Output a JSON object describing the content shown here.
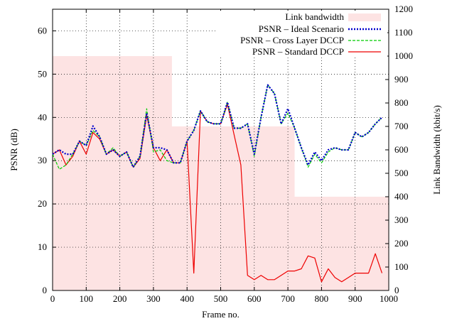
{
  "chart_data": {
    "type": "line",
    "xlabel": "Frame no.",
    "ylabel": "PSNR (dB)",
    "y2label": "Link Bandwidth (kbit/s)",
    "xlim": [
      0,
      1000
    ],
    "ylim": [
      0,
      65
    ],
    "y2lim": [
      0,
      1200
    ],
    "x_ticks": [
      0,
      100,
      200,
      300,
      400,
      500,
      600,
      700,
      800,
      900,
      1000
    ],
    "y_ticks": [
      0,
      10,
      20,
      30,
      40,
      50,
      60
    ],
    "y2_ticks": [
      0,
      100,
      200,
      300,
      400,
      500,
      600,
      700,
      800,
      900,
      1000,
      1100,
      1200
    ],
    "grid": true,
    "legend_position": "top-right",
    "bandwidth": {
      "name": "Link bandwidth",
      "color": "#fde3e3",
      "steps": [
        {
          "x0": 0,
          "x1": 355,
          "value": 1000
        },
        {
          "x0": 355,
          "x1": 720,
          "value": 700
        },
        {
          "x0": 720,
          "x1": 1000,
          "value": 400
        }
      ]
    },
    "series": [
      {
        "name": "PSNR – Ideal Scenario",
        "color": "#0000cc",
        "style": "dotted",
        "x": [
          0,
          20,
          40,
          60,
          80,
          100,
          120,
          140,
          160,
          180,
          200,
          220,
          240,
          260,
          280,
          300,
          320,
          340,
          360,
          380,
          400,
          420,
          440,
          460,
          480,
          500,
          520,
          540,
          560,
          580,
          600,
          620,
          640,
          660,
          680,
          700,
          720,
          740,
          760,
          780,
          800,
          820,
          840,
          860,
          880,
          900,
          920,
          940,
          960,
          980
        ],
        "values": [
          31.5,
          32.5,
          31.5,
          31.5,
          34.5,
          33.5,
          38,
          35.5,
          31.5,
          32.5,
          31,
          32,
          28.5,
          31,
          41,
          33,
          33,
          32.5,
          29.5,
          29.5,
          34.5,
          37,
          41.5,
          39,
          38.5,
          38.5,
          43.5,
          37.5,
          37.5,
          38.5,
          31.5,
          40,
          47.5,
          45.5,
          38.5,
          42,
          37.5,
          33,
          29,
          32,
          30,
          32.5,
          33,
          32.5,
          32.5,
          36.5,
          35.5,
          36.5,
          38.5,
          40
        ]
      },
      {
        "name": "PSNR – Cross Layer DCCP",
        "color": "#00cc00",
        "style": "dashed",
        "x": [
          0,
          20,
          40,
          60,
          80,
          100,
          120,
          140,
          160,
          180,
          200,
          220,
          240,
          260,
          280,
          300,
          320,
          340,
          360,
          380,
          400,
          420,
          440,
          460,
          480,
          500,
          520,
          540,
          560,
          580,
          600,
          620,
          640,
          660,
          680,
          700,
          720,
          740,
          760,
          780,
          800,
          820,
          840,
          860,
          880,
          900,
          920,
          940,
          960,
          980
        ],
        "values": [
          31.5,
          28,
          29,
          31.5,
          34.5,
          33.5,
          37,
          35.5,
          31.5,
          33,
          31,
          32,
          28.5,
          31,
          42,
          32,
          32.5,
          30,
          29.5,
          29.5,
          34.5,
          37,
          41.5,
          39,
          38.5,
          38.5,
          43.5,
          37.5,
          37.5,
          38.5,
          31,
          40,
          47.5,
          45.5,
          38.5,
          41,
          37.5,
          33,
          28.5,
          31.5,
          29.5,
          32,
          33,
          32.5,
          32.5,
          36.5,
          35.5,
          36.5,
          38.5,
          40
        ]
      },
      {
        "name": "PSNR – Standard DCCP",
        "color": "#ee0000",
        "style": "solid",
        "x": [
          0,
          20,
          40,
          60,
          80,
          100,
          120,
          140,
          160,
          180,
          200,
          220,
          240,
          260,
          280,
          300,
          320,
          340,
          360,
          380,
          400,
          420,
          440,
          460,
          480,
          500,
          520,
          540,
          560,
          580,
          600,
          620,
          640,
          660,
          680,
          700,
          720,
          740,
          760,
          780,
          800,
          820,
          840,
          860,
          880,
          900,
          920,
          940,
          960,
          980
        ],
        "values": [
          31.5,
          32.5,
          29,
          31,
          34.5,
          31.5,
          36.5,
          35,
          31.5,
          32.5,
          31,
          32,
          28.5,
          30.5,
          40.5,
          33,
          30,
          32.5,
          29.5,
          29.5,
          34.5,
          4,
          41.5,
          39,
          38.5,
          38.5,
          43,
          36,
          29,
          3.5,
          2.5,
          3.5,
          2.5,
          2.5,
          3.5,
          4.5,
          4.5,
          5,
          8,
          7.5,
          2,
          5,
          3,
          2,
          3,
          4,
          4,
          4,
          8.5,
          4
        ]
      }
    ]
  }
}
